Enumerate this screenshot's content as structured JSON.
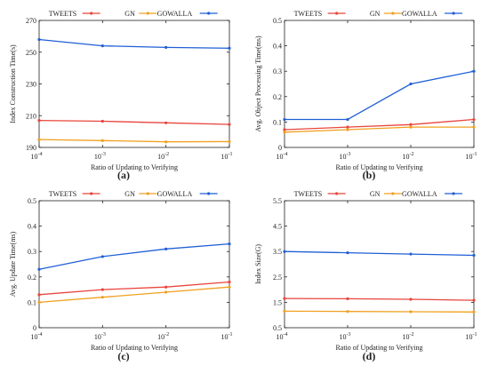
{
  "chart_data": [
    {
      "type": "line",
      "panel_label": "(a)",
      "x": [
        0.0001,
        0.001,
        0.01,
        0.1
      ],
      "x_tick_labels": [
        [
          "10",
          "-4"
        ],
        [
          "10",
          "-3"
        ],
        [
          "10",
          "-2"
        ],
        [
          "10",
          "-1"
        ]
      ],
      "xscale": "log",
      "xlabel": "Ratio of Updating to Verifying",
      "ylabel": "Index Construction Time(s)",
      "ylim": [
        190,
        270
      ],
      "yticks": [
        190,
        210,
        230,
        250,
        270
      ],
      "y_tick_labels": [
        "190",
        "210",
        "230",
        "250",
        "270"
      ],
      "legend_position": "top",
      "series": [
        {
          "name": "TWEETS",
          "color": "#e8453c",
          "values": [
            207,
            206.5,
            205.5,
            204.5
          ]
        },
        {
          "name": "GN",
          "color": "#f0a020",
          "values": [
            195,
            194.3,
            193.5,
            193.7
          ]
        },
        {
          "name": "GOWALLA",
          "color": "#1f5fd6",
          "values": [
            258,
            254,
            253,
            252.5
          ]
        }
      ]
    },
    {
      "type": "line",
      "panel_label": "(b)",
      "x": [
        0.0001,
        0.001,
        0.01,
        0.1
      ],
      "x_tick_labels": [
        [
          "10",
          "-4"
        ],
        [
          "10",
          "-3"
        ],
        [
          "10",
          "-2"
        ],
        [
          "10",
          "-1"
        ]
      ],
      "xscale": "log",
      "xlabel": "Ratio of Updating to Verifying",
      "ylabel": "Avg. Object Processing Time(ms)",
      "ylim": [
        0,
        0.5
      ],
      "yticks": [
        0,
        0.1,
        0.2,
        0.3,
        0.4,
        0.5
      ],
      "y_tick_labels": [
        "0",
        "0.1",
        "0.2",
        "0.3",
        "0.4",
        "0.5"
      ],
      "legend_position": "top",
      "series": [
        {
          "name": "TWEETS",
          "color": "#e8453c",
          "values": [
            0.07,
            0.08,
            0.09,
            0.11
          ]
        },
        {
          "name": "GN",
          "color": "#f0a020",
          "values": [
            0.06,
            0.07,
            0.08,
            0.08
          ]
        },
        {
          "name": "GOWALLA",
          "color": "#1f5fd6",
          "values": [
            0.11,
            0.11,
            0.25,
            0.3
          ]
        }
      ]
    },
    {
      "type": "line",
      "panel_label": "(c)",
      "x": [
        0.0001,
        0.001,
        0.01,
        0.1
      ],
      "x_tick_labels": [
        [
          "10",
          "-4"
        ],
        [
          "10",
          "-3"
        ],
        [
          "10",
          "-2"
        ],
        [
          "10",
          "-1"
        ]
      ],
      "xscale": "log",
      "xlabel": "Ratio of Updating to Verifying",
      "ylabel": "Avg. Update Time(ms)",
      "ylim": [
        0,
        0.5
      ],
      "yticks": [
        0,
        0.1,
        0.2,
        0.3,
        0.4,
        0.5
      ],
      "y_tick_labels": [
        "0",
        "0.1",
        "0.2",
        "0.3",
        "0.4",
        "0.5"
      ],
      "legend_position": "top",
      "series": [
        {
          "name": "TWEETS",
          "color": "#e8453c",
          "values": [
            0.13,
            0.15,
            0.16,
            0.18
          ]
        },
        {
          "name": "GN",
          "color": "#f0a020",
          "values": [
            0.1,
            0.12,
            0.14,
            0.16
          ]
        },
        {
          "name": "GOWALLA",
          "color": "#1f5fd6",
          "values": [
            0.23,
            0.28,
            0.31,
            0.33
          ]
        }
      ]
    },
    {
      "type": "line",
      "panel_label": "(d)",
      "x": [
        0.0001,
        0.001,
        0.01,
        0.1
      ],
      "x_tick_labels": [
        [
          "10",
          "-4"
        ],
        [
          "10",
          "-3"
        ],
        [
          "10",
          "-2"
        ],
        [
          "10",
          "-1"
        ]
      ],
      "xscale": "log",
      "xlabel": "Ratio of Updating to Verifying",
      "ylabel": "Index Size(G)",
      "ylim": [
        0.5,
        5.5
      ],
      "yticks": [
        0.5,
        1.5,
        2.5,
        3.5,
        4.5,
        5.5
      ],
      "y_tick_labels": [
        "0.5",
        "1.5",
        "2.5",
        "3.5",
        "4.5",
        "5.5"
      ],
      "legend_position": "top",
      "series": [
        {
          "name": "TWEETS",
          "color": "#e8453c",
          "values": [
            1.65,
            1.64,
            1.62,
            1.58
          ]
        },
        {
          "name": "GN",
          "color": "#f0a020",
          "values": [
            1.15,
            1.14,
            1.13,
            1.12
          ]
        },
        {
          "name": "GOWALLA",
          "color": "#1f5fd6",
          "values": [
            3.5,
            3.45,
            3.4,
            3.35
          ]
        }
      ]
    }
  ]
}
